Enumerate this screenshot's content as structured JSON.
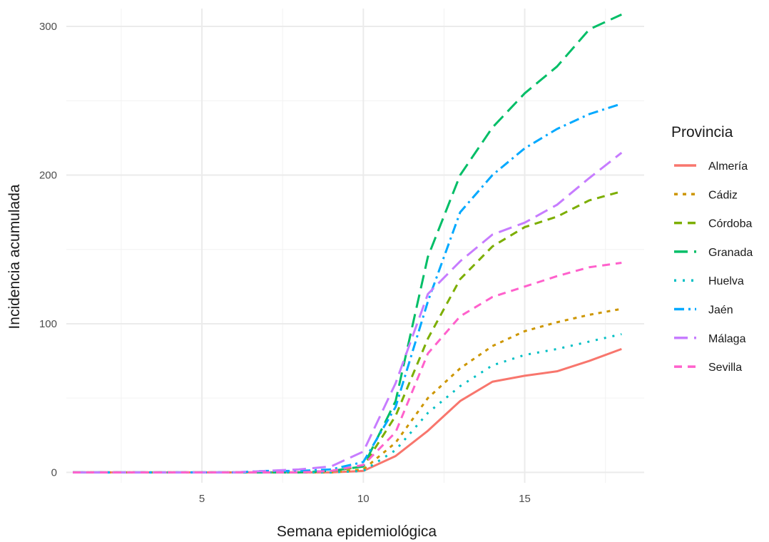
{
  "chart_data": {
    "type": "line",
    "xlabel": "Semana epidemiológica",
    "ylabel": "Incidencia acumulada",
    "xlim": [
      0.8,
      18.7
    ],
    "ylim": [
      -7,
      312
    ],
    "x_ticks": [
      5,
      10,
      15
    ],
    "x_minor_ticks": [
      2.5,
      7.5,
      12.5,
      17.5
    ],
    "y_ticks": [
      0,
      100,
      200,
      300
    ],
    "y_minor_ticks": [
      50,
      150,
      250
    ],
    "grid": true,
    "legend": {
      "title": "Provincia",
      "position": "right"
    },
    "x": [
      1,
      2,
      3,
      4,
      5,
      6,
      7,
      8,
      9,
      10,
      11,
      12,
      13,
      14,
      15,
      16,
      17,
      18
    ],
    "series": [
      {
        "name": "Almería",
        "color": "#F8766D",
        "dash": "solid",
        "values": [
          0,
          0,
          0,
          0,
          0,
          0,
          0,
          0,
          0,
          1,
          11,
          28,
          48,
          61,
          65,
          68,
          75,
          83
        ]
      },
      {
        "name": "Cádiz",
        "color": "#CD9600",
        "dash": "dotted",
        "values": [
          0,
          0,
          0,
          0,
          0,
          0,
          0,
          0,
          0,
          2,
          20,
          50,
          70,
          85,
          95,
          101,
          106,
          110
        ]
      },
      {
        "name": "Córdoba",
        "color": "#7CAE00",
        "dash": "dashed",
        "values": [
          0,
          0,
          0,
          0,
          0,
          0,
          0,
          0,
          1,
          4,
          38,
          90,
          130,
          152,
          165,
          172,
          183,
          189
        ]
      },
      {
        "name": "Granada",
        "color": "#00BE67",
        "dash": "longdash",
        "values": [
          0,
          0,
          0,
          0,
          0,
          0,
          0,
          0,
          1,
          4,
          48,
          145,
          200,
          232,
          255,
          273,
          298,
          308
        ]
      },
      {
        "name": "Huelva",
        "color": "#00BFC4",
        "dash": "dotdot",
        "values": [
          0,
          0,
          0,
          0,
          0,
          0,
          0,
          0,
          0,
          1,
          15,
          40,
          58,
          72,
          79,
          83,
          88,
          93
        ]
      },
      {
        "name": "Jaén",
        "color": "#00A9FF",
        "dash": "dashdot",
        "values": [
          0,
          0,
          0,
          0,
          0,
          0,
          1,
          1,
          2,
          7,
          44,
          115,
          175,
          200,
          218,
          231,
          241,
          248
        ]
      },
      {
        "name": "Málaga",
        "color": "#C77CFF",
        "dash": "longdash",
        "values": [
          0,
          0,
          0,
          0,
          0,
          0,
          1,
          2,
          4,
          14,
          60,
          120,
          142,
          160,
          168,
          180,
          198,
          215
        ]
      },
      {
        "name": "Sevilla",
        "color": "#FF61CC",
        "dash": "dashed",
        "values": [
          0,
          0,
          0,
          0,
          0,
          0,
          0,
          0,
          1,
          5,
          27,
          80,
          105,
          118,
          125,
          132,
          138,
          141
        ]
      }
    ]
  }
}
